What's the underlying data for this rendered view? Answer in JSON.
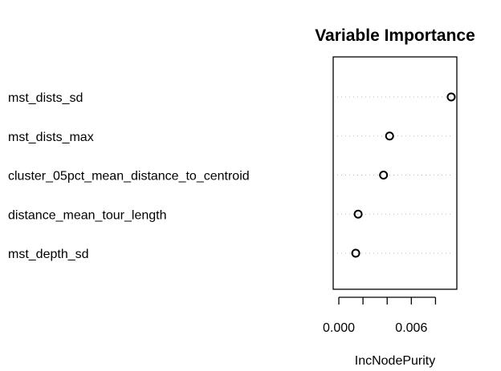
{
  "chart_data": {
    "type": "scatter",
    "title": "Variable Importance",
    "xlabel": "IncNodePurity",
    "ylabel": "",
    "categories": [
      "mst_dists_sd",
      "mst_dists_max",
      "cluster_05pct_mean_distance_to_centroid",
      "distance_mean_tour_length",
      "mst_depth_sd"
    ],
    "values": [
      0.0093,
      0.0042,
      0.0037,
      0.0016,
      0.0014
    ],
    "xlim": [
      0.0,
      0.0093
    ],
    "xticks": [
      0.0,
      0.002,
      0.004,
      0.006,
      0.008
    ],
    "xtick_labels": [
      "0.000",
      "",
      "",
      "0.006",
      ""
    ],
    "grid": false,
    "legend": "none"
  }
}
